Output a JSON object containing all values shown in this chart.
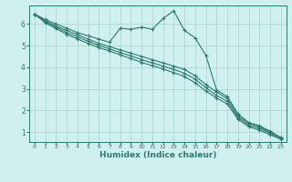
{
  "title": "",
  "xlabel": "Humidex (Indice chaleur)",
  "ylabel": "",
  "bg_color": "#cff0ee",
  "line_color": "#2d7a6e",
  "grid_color": "#afd8d4",
  "xlim": [
    -0.5,
    23.5
  ],
  "ylim": [
    0.55,
    6.85
  ],
  "xticks": [
    0,
    1,
    2,
    3,
    4,
    5,
    6,
    7,
    8,
    9,
    10,
    11,
    12,
    13,
    14,
    15,
    16,
    17,
    18,
    19,
    20,
    21,
    22,
    23
  ],
  "yticks": [
    1,
    2,
    3,
    4,
    5,
    6
  ],
  "lines": [
    {
      "x": [
        0,
        1,
        2,
        3,
        4,
        5,
        6,
        7,
        8,
        9,
        10,
        11,
        12,
        13,
        14,
        15,
        16,
        17,
        18,
        19,
        20,
        21,
        22,
        23
      ],
      "y": [
        6.45,
        6.2,
        6.0,
        5.8,
        5.6,
        5.45,
        5.3,
        5.15,
        5.8,
        5.75,
        5.85,
        5.75,
        6.25,
        6.6,
        5.7,
        5.35,
        4.55,
        2.95,
        2.65,
        1.85,
        1.45,
        1.3,
        1.05,
        0.75
      ],
      "marker": "+"
    },
    {
      "x": [
        0,
        1,
        2,
        3,
        4,
        5,
        6,
        7,
        8,
        9,
        10,
        11,
        12,
        13,
        14,
        15,
        16,
        17,
        18,
        19,
        20,
        21,
        22,
        23
      ],
      "y": [
        6.45,
        6.15,
        5.9,
        5.7,
        5.5,
        5.3,
        5.1,
        4.95,
        4.8,
        4.65,
        4.5,
        4.35,
        4.2,
        4.05,
        3.9,
        3.6,
        3.2,
        2.85,
        2.55,
        1.75,
        1.4,
        1.25,
        1.0,
        0.75
      ],
      "marker": "+"
    },
    {
      "x": [
        0,
        1,
        2,
        3,
        4,
        5,
        6,
        7,
        8,
        9,
        10,
        11,
        12,
        13,
        14,
        15,
        16,
        17,
        18,
        19,
        20,
        21,
        22,
        23
      ],
      "y": [
        6.45,
        6.1,
        5.85,
        5.6,
        5.4,
        5.2,
        5.0,
        4.85,
        4.68,
        4.52,
        4.35,
        4.2,
        4.05,
        3.9,
        3.72,
        3.45,
        3.05,
        2.7,
        2.42,
        1.68,
        1.32,
        1.18,
        0.95,
        0.72
      ],
      "marker": "+"
    },
    {
      "x": [
        0,
        1,
        2,
        3,
        4,
        5,
        6,
        7,
        8,
        9,
        10,
        11,
        12,
        13,
        14,
        15,
        16,
        17,
        18,
        19,
        20,
        21,
        22,
        23
      ],
      "y": [
        6.45,
        6.05,
        5.78,
        5.52,
        5.3,
        5.1,
        4.9,
        4.75,
        4.57,
        4.4,
        4.22,
        4.07,
        3.92,
        3.75,
        3.57,
        3.28,
        2.9,
        2.58,
        2.3,
        1.6,
        1.25,
        1.1,
        0.88,
        0.68
      ],
      "marker": "+"
    }
  ]
}
